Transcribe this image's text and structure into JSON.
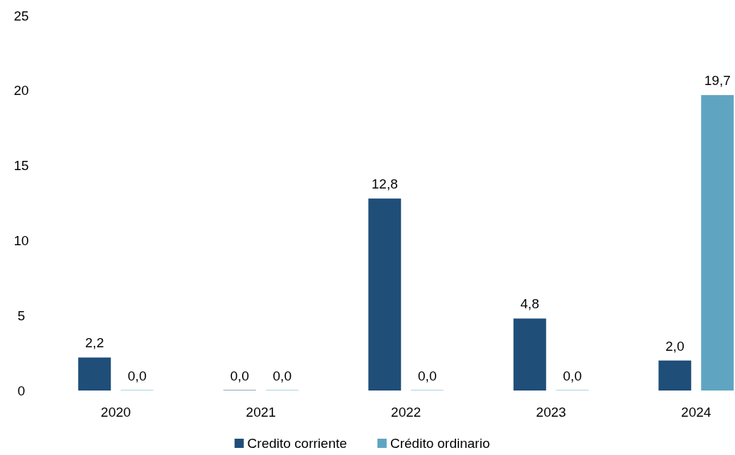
{
  "chart_data": {
    "type": "bar",
    "categories": [
      "2020",
      "2021",
      "2022",
      "2023",
      "2024"
    ],
    "series": [
      {
        "name": "Credito corriente",
        "color": "#1f4e79",
        "values": [
          2.2,
          0.0,
          12.8,
          4.8,
          2.0
        ],
        "value_labels": [
          "2,2",
          "0,0",
          "12,8",
          "4,8",
          "2,0"
        ]
      },
      {
        "name": "Crédito ordinario",
        "color": "#5fa5c2",
        "values": [
          0.0,
          0.0,
          0.0,
          0.0,
          19.7
        ],
        "value_labels": [
          "0,0",
          "0,0",
          "0,0",
          "0,0",
          "19,7"
        ]
      }
    ],
    "ylim": [
      0,
      25
    ],
    "yticks": [
      0,
      5,
      10,
      15,
      20,
      25
    ],
    "grid": false,
    "legend": "bottom"
  }
}
